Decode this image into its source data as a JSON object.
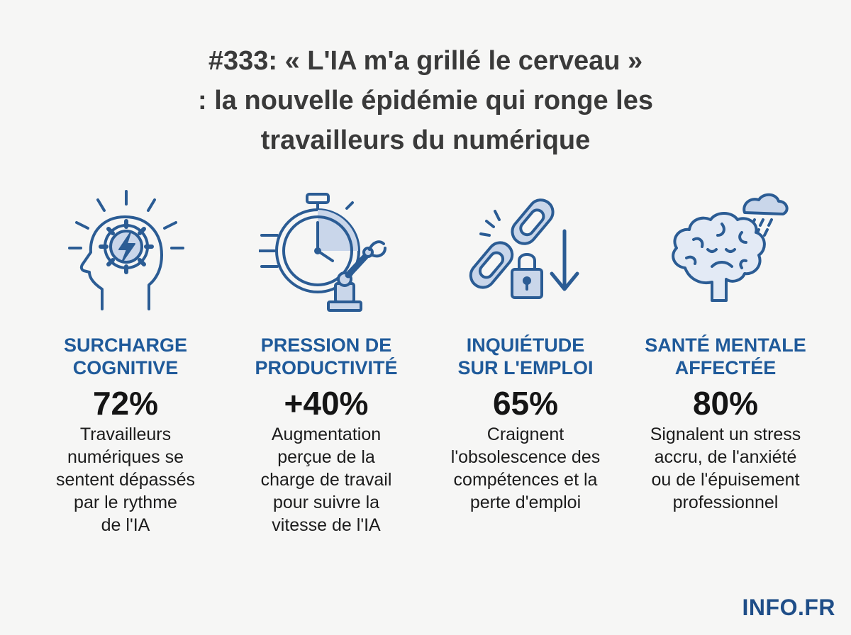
{
  "title_lines": [
    "#333: « L'IA m'a grillé le cerveau »",
    ": la nouvelle épidémie qui ronge les",
    "travailleurs du numérique"
  ],
  "colors": {
    "accent": "#1f5a9a",
    "icon_stroke": "#2b5c94",
    "icon_fill": "#c9d6ea",
    "text": "#1c1c1c",
    "background": "#f6f6f5"
  },
  "cards": [
    {
      "icon": "brain-gear-lightning-icon",
      "heading": [
        "SURCHARGE",
        "COGNITIVE"
      ],
      "stat": "72%",
      "desc": [
        "Travailleurs",
        "numériques se",
        "sentent dépassés",
        "par le rythme",
        "de l'IA"
      ]
    },
    {
      "icon": "stopwatch-robot-arm-icon",
      "heading": [
        "PRESSION DE",
        "PRODUCTIVITÉ"
      ],
      "stat": "+40%",
      "desc": [
        "Augmentation",
        "perçue de la",
        "charge de travail",
        "pour suivre la",
        "vitesse de l'IA"
      ]
    },
    {
      "icon": "broken-chain-lock-icon",
      "heading": [
        "INQUIÉTUDE",
        "SUR L'EMPLOI"
      ],
      "stat": "65%",
      "desc": [
        "Craignent",
        "l'obsolescence des",
        "compétences et la",
        "perte d'emploi"
      ]
    },
    {
      "icon": "sad-brain-rain-cloud-icon",
      "heading": [
        "SANTÉ MENTALE",
        "AFFECTÉE"
      ],
      "stat": "80%",
      "desc": [
        "Signalent un stress",
        "accru, de l'anxiété",
        "ou de l'épuisement",
        "professionnel"
      ]
    }
  ],
  "logo": "INFO.FR"
}
